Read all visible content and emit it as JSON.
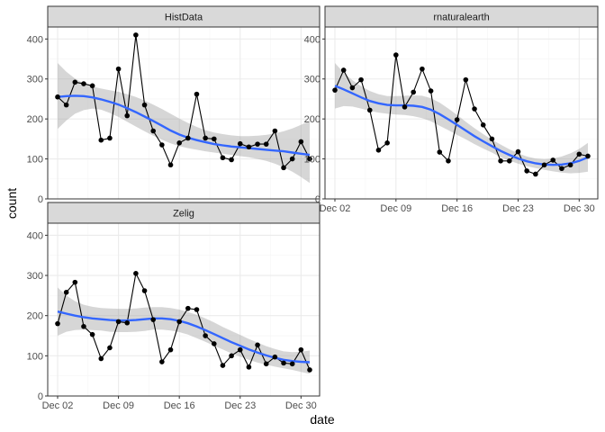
{
  "chart_data": {
    "type": "line",
    "xlabel": "date",
    "ylabel": "count",
    "ylim": [
      0,
      430
    ],
    "y_ticks": [
      0,
      100,
      200,
      300,
      400
    ],
    "x_ticks": [
      "Dec 02",
      "Dec 09",
      "Dec 16",
      "Dec 23",
      "Dec 30"
    ],
    "x": [
      "Dec 02",
      "Dec 03",
      "Dec 04",
      "Dec 05",
      "Dec 06",
      "Dec 07",
      "Dec 08",
      "Dec 09",
      "Dec 10",
      "Dec 11",
      "Dec 12",
      "Dec 13",
      "Dec 14",
      "Dec 15",
      "Dec 16",
      "Dec 17",
      "Dec 18",
      "Dec 19",
      "Dec 20",
      "Dec 21",
      "Dec 22",
      "Dec 23",
      "Dec 24",
      "Dec 25",
      "Dec 26",
      "Dec 27",
      "Dec 28",
      "Dec 29",
      "Dec 30",
      "Dec 31"
    ],
    "grid": true,
    "colors": {
      "points": "#000000",
      "line": "#000000",
      "smooth": "#3366FF",
      "ribbon": "#999999",
      "strip_fill": "#D9D9D9",
      "panel_border": "#333333",
      "grid_major": "#EBEBEB",
      "grid_minor": "#F5F5F5"
    },
    "panels": [
      {
        "name": "HistData",
        "values": [
          255,
          235,
          292,
          288,
          283,
          147,
          152,
          325,
          208,
          410,
          235,
          170,
          135,
          85,
          140,
          152,
          262,
          152,
          150,
          103,
          98,
          138,
          130,
          137,
          137,
          170,
          78,
          100,
          143,
          100
        ],
        "smooth": [
          255,
          257,
          258,
          257,
          254,
          249,
          243,
          236,
          227,
          217,
          206,
          195,
          183,
          171,
          161,
          153,
          147,
          142,
          137,
          134,
          131,
          129,
          127,
          125,
          123,
          121,
          119,
          116,
          113,
          110
        ],
        "smooth_upper": [
          340,
          318,
          301,
          289,
          281,
          276,
          272,
          268,
          262,
          255,
          246,
          236,
          225,
          213,
          201,
          190,
          180,
          172,
          166,
          162,
          159,
          157,
          157,
          158,
          160,
          164,
          169,
          176,
          185,
          195
        ],
        "smooth_lower": [
          175,
          196,
          213,
          222,
          226,
          223,
          215,
          205,
          193,
          181,
          169,
          158,
          148,
          139,
          132,
          127,
          123,
          119,
          116,
          113,
          110,
          107,
          104,
          100,
          95,
          88,
          79,
          68,
          55,
          40
        ]
      },
      {
        "name": "rnaturalearth",
        "values": [
          272,
          322,
          278,
          298,
          222,
          122,
          140,
          360,
          230,
          267,
          325,
          270,
          117,
          95,
          198,
          298,
          225,
          185,
          150,
          95,
          95,
          118,
          70,
          62,
          85,
          97,
          76,
          85,
          112,
          107
        ],
        "smooth": [
          283,
          274,
          264,
          254,
          245,
          239,
          235,
          234,
          234,
          233,
          230,
          223,
          212,
          199,
          185,
          171,
          157,
          144,
          132,
          120,
          110,
          101,
          94,
          89,
          86,
          85,
          86,
          89,
          95,
          104
        ],
        "smooth_upper": [
          340,
          316,
          297,
          282,
          270,
          262,
          257,
          257,
          258,
          259,
          258,
          252,
          241,
          226,
          210,
          193,
          177,
          162,
          148,
          136,
          124,
          114,
          106,
          101,
          99,
          101,
          106,
          114,
          125,
          140
        ],
        "smooth_lower": [
          226,
          232,
          231,
          226,
          220,
          216,
          213,
          211,
          210,
          207,
          202,
          194,
          183,
          172,
          160,
          149,
          137,
          126,
          116,
          104,
          96,
          88,
          82,
          77,
          73,
          69,
          66,
          64,
          65,
          68
        ]
      },
      {
        "name": "Zelig",
        "values": [
          180,
          258,
          283,
          173,
          153,
          93,
          120,
          185,
          182,
          305,
          262,
          190,
          85,
          115,
          185,
          218,
          215,
          150,
          130,
          76,
          100,
          115,
          72,
          127,
          80,
          97,
          82,
          80,
          115,
          65
        ],
        "smooth": [
          210,
          205,
          200,
          196,
          193,
          191,
          189,
          188,
          188,
          189,
          191,
          193,
          193,
          191,
          187,
          181,
          173,
          164,
          154,
          144,
          134,
          125,
          116,
          108,
          101,
          95,
          90,
          87,
          85,
          84
        ],
        "smooth_upper": [
          270,
          250,
          236,
          227,
          222,
          219,
          218,
          217,
          217,
          218,
          220,
          221,
          221,
          219,
          215,
          209,
          202,
          193,
          183,
          172,
          162,
          152,
          142,
          133,
          124,
          117,
          111,
          109,
          110,
          113
        ],
        "smooth_lower": [
          150,
          160,
          164,
          165,
          164,
          163,
          160,
          159,
          159,
          160,
          162,
          165,
          165,
          163,
          159,
          153,
          144,
          135,
          125,
          116,
          106,
          98,
          90,
          83,
          78,
          73,
          69,
          65,
          60,
          55
        ]
      }
    ]
  }
}
